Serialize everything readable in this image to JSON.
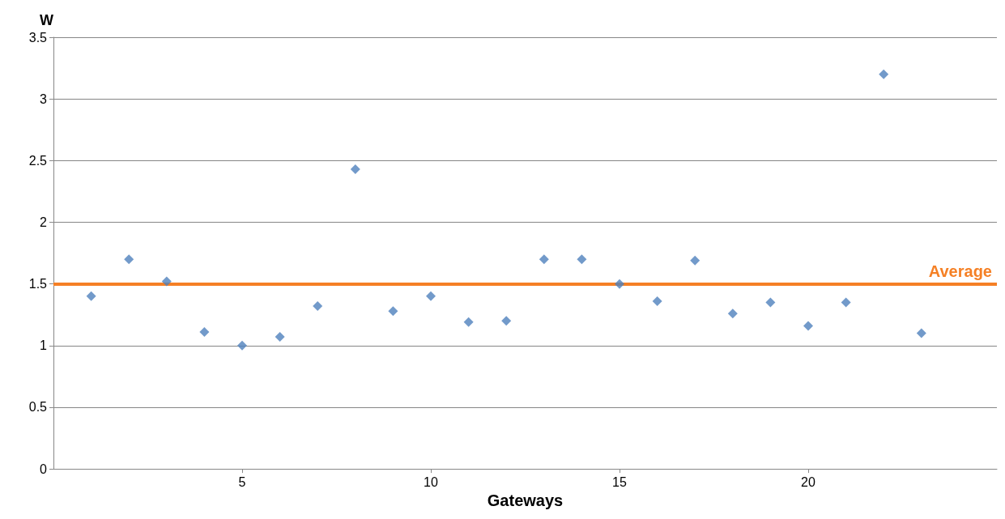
{
  "chart_data": {
    "type": "scatter",
    "xlabel": "Gateways",
    "ylabel": "W",
    "x": [
      1,
      2,
      3,
      4,
      5,
      6,
      7,
      8,
      9,
      10,
      11,
      12,
      13,
      14,
      15,
      16,
      17,
      18,
      19,
      20,
      21,
      22,
      23
    ],
    "series": [
      {
        "color": "#4f81bd",
        "values": [
          1.4,
          1.7,
          1.52,
          1.11,
          1.0,
          1.07,
          1.32,
          2.43,
          1.28,
          1.4,
          1.19,
          1.2,
          1.7,
          1.7,
          1.5,
          1.36,
          1.69,
          1.26,
          1.35,
          1.16,
          1.35,
          3.2,
          1.1
        ]
      }
    ],
    "xlim": [
      0,
      25
    ],
    "xticks": [
      5,
      10,
      15,
      20
    ],
    "ylim": [
      0,
      3.5
    ],
    "yticks": [
      0,
      0.5,
      1,
      1.5,
      2,
      2.5,
      3,
      3.5
    ],
    "grid": "y",
    "marker": "diamond",
    "ref_lines": [
      {
        "axis": "y",
        "value": 1.5,
        "label": "Average",
        "color": "#f58025"
      }
    ]
  }
}
